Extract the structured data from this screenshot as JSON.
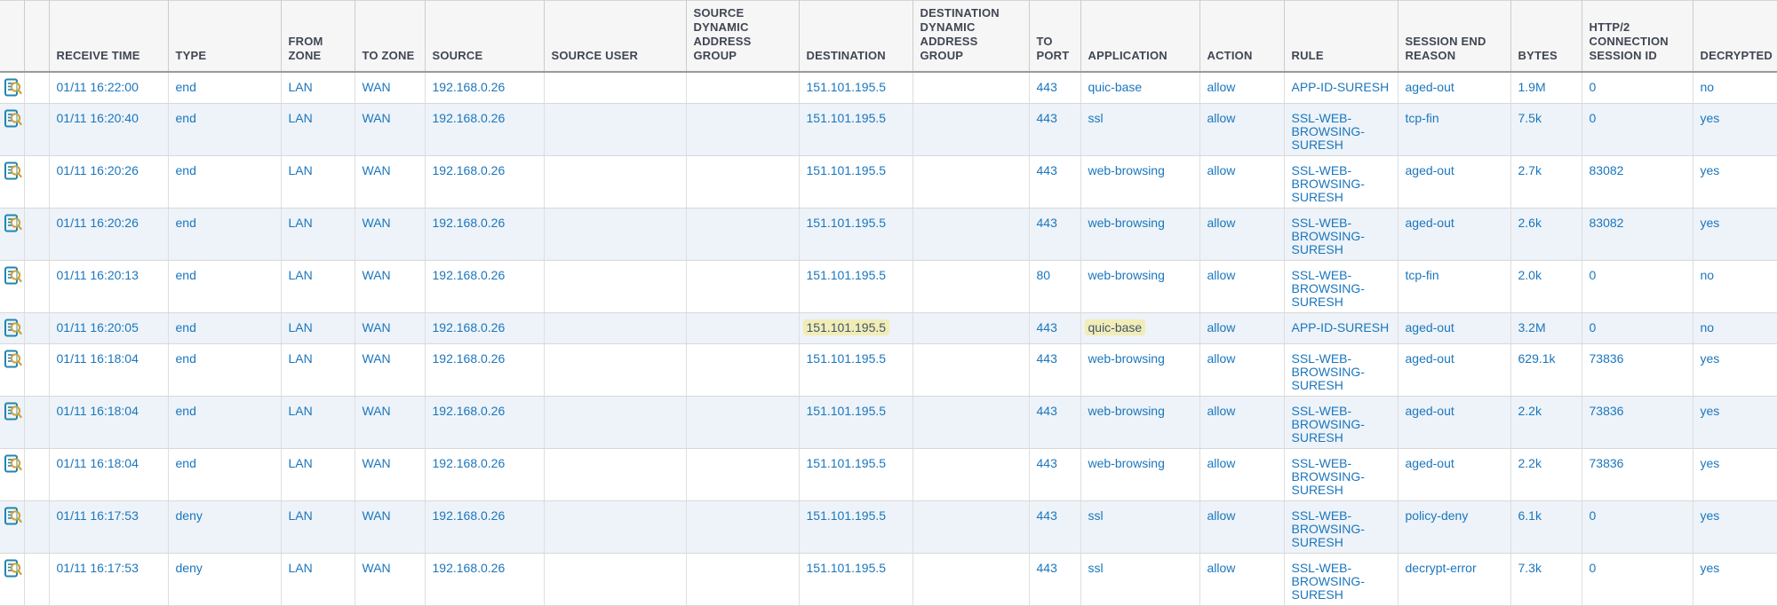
{
  "ui": {
    "colors": {
      "link_blue": "#1b76bd",
      "header_text": "#404652",
      "alt_row_bg": "#edf3f8",
      "highlight_bg": "#f2edb7",
      "highlight_text": "#3f566b",
      "icon_doc_blue": "#2286ad",
      "icon_magnifier_gold": "#cda23a"
    },
    "icons": {
      "row_detail": "log-detail-icon"
    }
  },
  "table": {
    "columns": [
      {
        "key": "detail",
        "label": ""
      },
      {
        "key": "flag",
        "label": ""
      },
      {
        "key": "receive_time",
        "label": "RECEIVE TIME"
      },
      {
        "key": "type",
        "label": "TYPE"
      },
      {
        "key": "from_zone",
        "label": "FROM ZONE"
      },
      {
        "key": "to_zone",
        "label": "TO ZONE"
      },
      {
        "key": "source",
        "label": "SOURCE"
      },
      {
        "key": "source_user",
        "label": "SOURCE USER"
      },
      {
        "key": "source_dag",
        "label": "SOURCE DYNAMIC ADDRESS GROUP"
      },
      {
        "key": "destination",
        "label": "DESTINATION"
      },
      {
        "key": "dest_dag",
        "label": "DESTINATION DYNAMIC ADDRESS GROUP"
      },
      {
        "key": "to_port",
        "label": "TO PORT"
      },
      {
        "key": "application",
        "label": "APPLICATION"
      },
      {
        "key": "action",
        "label": "ACTION"
      },
      {
        "key": "rule",
        "label": "RULE"
      },
      {
        "key": "session_end_reason",
        "label": "SESSION END REASON"
      },
      {
        "key": "bytes",
        "label": "BYTES"
      },
      {
        "key": "http2_id",
        "label": "HTTP/2 CONNECTION SESSION ID"
      },
      {
        "key": "decrypted",
        "label": "DECRYPTED"
      }
    ],
    "rows": [
      {
        "receive_time": "01/11 16:22:00",
        "type": "end",
        "from_zone": "LAN",
        "to_zone": "WAN",
        "source": "192.168.0.26",
        "source_user": "",
        "source_dag": "",
        "destination": "151.101.195.5",
        "dest_dag": "",
        "to_port": "443",
        "application": "quic-base",
        "action": "allow",
        "rule": "APP-ID-SURESH",
        "session_end_reason": "aged-out",
        "bytes": "1.9M",
        "http2_id": "0",
        "decrypted": "no",
        "highlight": []
      },
      {
        "receive_time": "01/11 16:20:40",
        "type": "end",
        "from_zone": "LAN",
        "to_zone": "WAN",
        "source": "192.168.0.26",
        "source_user": "",
        "source_dag": "",
        "destination": "151.101.195.5",
        "dest_dag": "",
        "to_port": "443",
        "application": "ssl",
        "action": "allow",
        "rule": "SSL-WEB-BROWSING-SURESH",
        "session_end_reason": "tcp-fin",
        "bytes": "7.5k",
        "http2_id": "0",
        "decrypted": "yes",
        "highlight": []
      },
      {
        "receive_time": "01/11 16:20:26",
        "type": "end",
        "from_zone": "LAN",
        "to_zone": "WAN",
        "source": "192.168.0.26",
        "source_user": "",
        "source_dag": "",
        "destination": "151.101.195.5",
        "dest_dag": "",
        "to_port": "443",
        "application": "web-browsing",
        "action": "allow",
        "rule": "SSL-WEB-BROWSING-SURESH",
        "session_end_reason": "aged-out",
        "bytes": "2.7k",
        "http2_id": "83082",
        "decrypted": "yes",
        "highlight": []
      },
      {
        "receive_time": "01/11 16:20:26",
        "type": "end",
        "from_zone": "LAN",
        "to_zone": "WAN",
        "source": "192.168.0.26",
        "source_user": "",
        "source_dag": "",
        "destination": "151.101.195.5",
        "dest_dag": "",
        "to_port": "443",
        "application": "web-browsing",
        "action": "allow",
        "rule": "SSL-WEB-BROWSING-SURESH",
        "session_end_reason": "aged-out",
        "bytes": "2.6k",
        "http2_id": "83082",
        "decrypted": "yes",
        "highlight": []
      },
      {
        "receive_time": "01/11 16:20:13",
        "type": "end",
        "from_zone": "LAN",
        "to_zone": "WAN",
        "source": "192.168.0.26",
        "source_user": "",
        "source_dag": "",
        "destination": "151.101.195.5",
        "dest_dag": "",
        "to_port": "80",
        "application": "web-browsing",
        "action": "allow",
        "rule": "SSL-WEB-BROWSING-SURESH",
        "session_end_reason": "tcp-fin",
        "bytes": "2.0k",
        "http2_id": "0",
        "decrypted": "no",
        "highlight": []
      },
      {
        "receive_time": "01/11 16:20:05",
        "type": "end",
        "from_zone": "LAN",
        "to_zone": "WAN",
        "source": "192.168.0.26",
        "source_user": "",
        "source_dag": "",
        "destination": "151.101.195.5",
        "dest_dag": "",
        "to_port": "443",
        "application": "quic-base",
        "action": "allow",
        "rule": "APP-ID-SURESH",
        "session_end_reason": "aged-out",
        "bytes": "3.2M",
        "http2_id": "0",
        "decrypted": "no",
        "highlight": [
          "destination",
          "application"
        ]
      },
      {
        "receive_time": "01/11 16:18:04",
        "type": "end",
        "from_zone": "LAN",
        "to_zone": "WAN",
        "source": "192.168.0.26",
        "source_user": "",
        "source_dag": "",
        "destination": "151.101.195.5",
        "dest_dag": "",
        "to_port": "443",
        "application": "web-browsing",
        "action": "allow",
        "rule": "SSL-WEB-BROWSING-SURESH",
        "session_end_reason": "aged-out",
        "bytes": "629.1k",
        "http2_id": "73836",
        "decrypted": "yes",
        "highlight": []
      },
      {
        "receive_time": "01/11 16:18:04",
        "type": "end",
        "from_zone": "LAN",
        "to_zone": "WAN",
        "source": "192.168.0.26",
        "source_user": "",
        "source_dag": "",
        "destination": "151.101.195.5",
        "dest_dag": "",
        "to_port": "443",
        "application": "web-browsing",
        "action": "allow",
        "rule": "SSL-WEB-BROWSING-SURESH",
        "session_end_reason": "aged-out",
        "bytes": "2.2k",
        "http2_id": "73836",
        "decrypted": "yes",
        "highlight": []
      },
      {
        "receive_time": "01/11 16:18:04",
        "type": "end",
        "from_zone": "LAN",
        "to_zone": "WAN",
        "source": "192.168.0.26",
        "source_user": "",
        "source_dag": "",
        "destination": "151.101.195.5",
        "dest_dag": "",
        "to_port": "443",
        "application": "web-browsing",
        "action": "allow",
        "rule": "SSL-WEB-BROWSING-SURESH",
        "session_end_reason": "aged-out",
        "bytes": "2.2k",
        "http2_id": "73836",
        "decrypted": "yes",
        "highlight": []
      },
      {
        "receive_time": "01/11 16:17:53",
        "type": "deny",
        "from_zone": "LAN",
        "to_zone": "WAN",
        "source": "192.168.0.26",
        "source_user": "",
        "source_dag": "",
        "destination": "151.101.195.5",
        "dest_dag": "",
        "to_port": "443",
        "application": "ssl",
        "action": "allow",
        "rule": "SSL-WEB-BROWSING-SURESH",
        "session_end_reason": "policy-deny",
        "bytes": "6.1k",
        "http2_id": "0",
        "decrypted": "yes",
        "highlight": []
      },
      {
        "receive_time": "01/11 16:17:53",
        "type": "deny",
        "from_zone": "LAN",
        "to_zone": "WAN",
        "source": "192.168.0.26",
        "source_user": "",
        "source_dag": "",
        "destination": "151.101.195.5",
        "dest_dag": "",
        "to_port": "443",
        "application": "ssl",
        "action": "allow",
        "rule": "SSL-WEB-BROWSING-SURESH",
        "session_end_reason": "decrypt-error",
        "bytes": "7.3k",
        "http2_id": "0",
        "decrypted": "yes",
        "highlight": []
      }
    ]
  }
}
